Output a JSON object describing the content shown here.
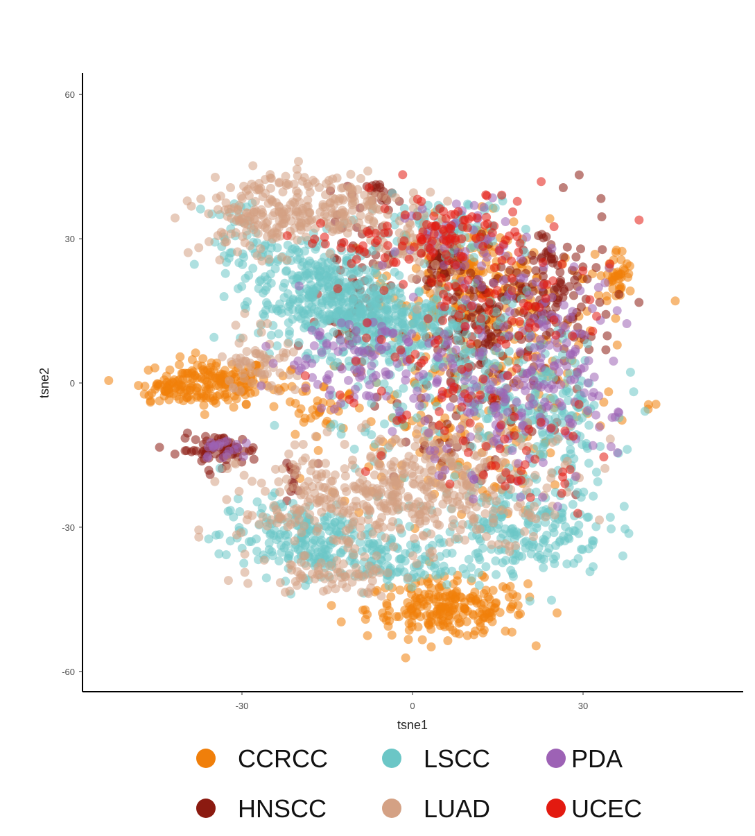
{
  "chart_data": {
    "type": "scatter",
    "title": "",
    "xlabel": "tsne1",
    "ylabel": "tsne2",
    "xlim": [
      -58,
      58
    ],
    "ylim": [
      -64,
      64
    ],
    "x_ticks": [
      -30,
      0,
      30
    ],
    "y_ticks": [
      -60,
      -30,
      0,
      30,
      60
    ],
    "x_tick_labels": [
      "-30",
      "0",
      "30"
    ],
    "y_tick_labels": [
      "-60",
      "-30",
      "0",
      "30",
      "60"
    ],
    "grid": false,
    "legend_position": "bottom",
    "point_alpha": 0.55,
    "series": [
      {
        "name": "CCRCC",
        "color": "#F07F0A",
        "clusters": [
          {
            "cx": -35,
            "cy": 0,
            "sx": 5,
            "sy": 2.5,
            "n": 160
          },
          {
            "cx": -43,
            "cy": -1,
            "sx": 3,
            "sy": 1.3,
            "n": 40
          },
          {
            "cx": 6,
            "cy": -47,
            "sx": 7,
            "sy": 3,
            "n": 230
          },
          {
            "cx": 10,
            "cy": 22,
            "sx": 7,
            "sy": 6,
            "n": 220
          },
          {
            "cx": 36,
            "cy": 22,
            "sx": 1.5,
            "sy": 3,
            "n": 40
          },
          {
            "cx": 5,
            "cy": -8,
            "sx": 10,
            "sy": 10,
            "n": 150
          },
          {
            "cx": -18,
            "cy": -5,
            "sx": 5,
            "sy": 4,
            "n": 40
          },
          {
            "cx": 20,
            "cy": 5,
            "sx": 10,
            "sy": 10,
            "n": 100
          }
        ]
      },
      {
        "name": "HNSCC",
        "color": "#8B1A10",
        "clusters": [
          {
            "cx": -34,
            "cy": -14,
            "sx": 3.5,
            "sy": 1.6,
            "n": 70
          },
          {
            "cx": -21,
            "cy": -20,
            "sx": 0.8,
            "sy": 1.6,
            "n": 12
          },
          {
            "cx": -5,
            "cy": 39,
            "sx": 1.5,
            "sy": 1.5,
            "n": 20
          },
          {
            "cx": 5,
            "cy": 25,
            "sx": 2,
            "sy": 2,
            "n": 40
          },
          {
            "cx": 15,
            "cy": 12,
            "sx": 7,
            "sy": 7,
            "n": 150
          },
          {
            "cx": 25,
            "cy": 20,
            "sx": 5,
            "sy": 8,
            "n": 80
          },
          {
            "cx": -10,
            "cy": 20,
            "sx": 3,
            "sy": 8,
            "n": 60
          },
          {
            "cx": 10,
            "cy": -5,
            "sx": 10,
            "sy": 10,
            "n": 60
          }
        ]
      },
      {
        "name": "LSCC",
        "color": "#6BC6C6",
        "clusters": [
          {
            "cx": -15,
            "cy": 17,
            "sx": 6,
            "sy": 5,
            "n": 300
          },
          {
            "cx": -3,
            "cy": 13,
            "sx": 7,
            "sy": 4,
            "n": 200
          },
          {
            "cx": -30,
            "cy": 30,
            "sx": 3,
            "sy": 4,
            "n": 40
          },
          {
            "cx": -20,
            "cy": 25,
            "sx": 5,
            "sy": 3,
            "n": 60
          },
          {
            "cx": -20,
            "cy": -32,
            "sx": 7,
            "sy": 4,
            "n": 200
          },
          {
            "cx": -5,
            "cy": -37,
            "sx": 7,
            "sy": 3,
            "n": 120
          },
          {
            "cx": 20,
            "cy": -30,
            "sx": 7,
            "sy": 5,
            "n": 200
          },
          {
            "cx": 10,
            "cy": 0,
            "sx": 12,
            "sy": 10,
            "n": 250
          },
          {
            "cx": 25,
            "cy": -10,
            "sx": 5,
            "sy": 7,
            "n": 100
          },
          {
            "cx": 5,
            "cy": 33,
            "sx": 8,
            "sy": 3,
            "n": 80
          }
        ]
      },
      {
        "name": "LUAD",
        "color": "#D4A184",
        "clusters": [
          {
            "cx": -25,
            "cy": 35,
            "sx": 6,
            "sy": 4,
            "n": 200
          },
          {
            "cx": -12,
            "cy": 37,
            "sx": 4,
            "sy": 3,
            "n": 80
          },
          {
            "cx": -10,
            "cy": -25,
            "sx": 10,
            "sy": 6,
            "n": 300
          },
          {
            "cx": 10,
            "cy": -20,
            "sx": 10,
            "sy": 6,
            "n": 200
          },
          {
            "cx": -27,
            "cy": 5,
            "sx": 3,
            "sy": 4,
            "n": 60
          },
          {
            "cx": 0,
            "cy": 30,
            "sx": 4,
            "sy": 5,
            "n": 60
          },
          {
            "cx": -15,
            "cy": -40,
            "sx": 6,
            "sy": 2,
            "n": 60
          }
        ]
      },
      {
        "name": "PDA",
        "color": "#9D62B5",
        "clusters": [
          {
            "cx": -10,
            "cy": 5,
            "sx": 8,
            "sy": 5,
            "n": 100
          },
          {
            "cx": 15,
            "cy": -5,
            "sx": 10,
            "sy": 8,
            "n": 150
          },
          {
            "cx": 25,
            "cy": 10,
            "sx": 6,
            "sy": 8,
            "n": 80
          },
          {
            "cx": -33,
            "cy": -14,
            "sx": 3,
            "sy": 1.5,
            "n": 20
          },
          {
            "cx": 10,
            "cy": 30,
            "sx": 6,
            "sy": 5,
            "n": 50
          }
        ]
      },
      {
        "name": "UCEC",
        "color": "#E31A10",
        "clusters": [
          {
            "cx": 5,
            "cy": 32,
            "sx": 6,
            "sy": 4,
            "n": 80
          },
          {
            "cx": 20,
            "cy": 20,
            "sx": 8,
            "sy": 8,
            "n": 60
          },
          {
            "cx": 5,
            "cy": 0,
            "sx": 10,
            "sy": 10,
            "n": 60
          },
          {
            "cx": -10,
            "cy": 28,
            "sx": 4,
            "sy": 3,
            "n": 20
          },
          {
            "cx": 20,
            "cy": -15,
            "sx": 5,
            "sy": 5,
            "n": 30
          }
        ]
      }
    ]
  }
}
